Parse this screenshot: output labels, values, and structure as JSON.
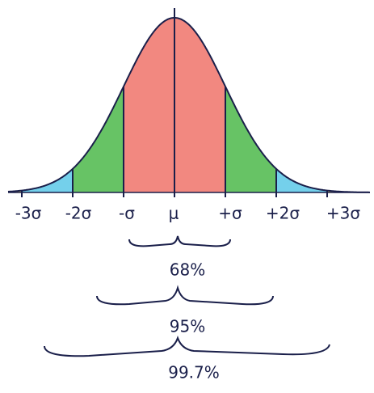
{
  "axis_labels": [
    "-3σ",
    "-2σ",
    "-σ",
    "μ",
    "+σ",
    "+2σ",
    "+3σ"
  ],
  "ranges": [
    "68%",
    "95%",
    "99.7%"
  ]
}
